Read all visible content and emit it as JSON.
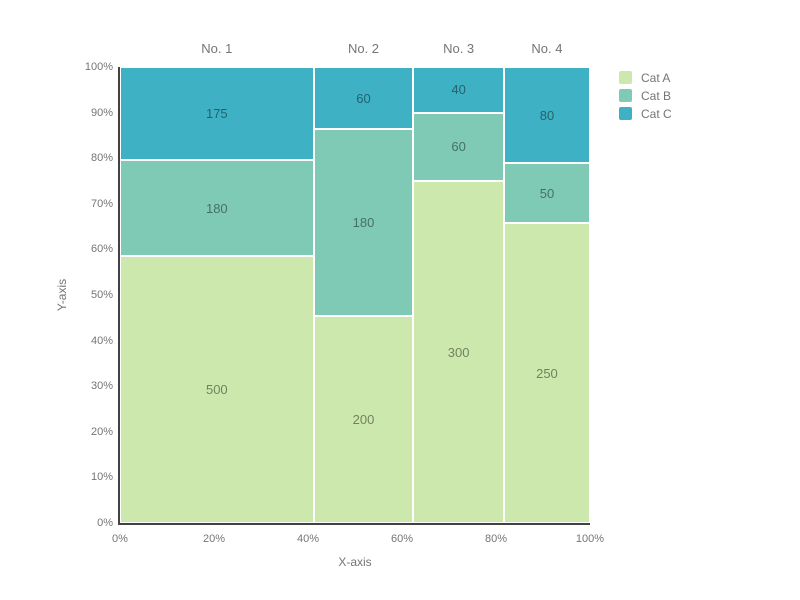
{
  "chart_data": {
    "type": "mosaic",
    "xlabel": "X-axis",
    "ylabel": "Y-axis",
    "categories": [
      "No. 1",
      "No. 2",
      "No. 3",
      "No. 4"
    ],
    "series": [
      {
        "name": "Cat A",
        "color": "#cde8ac",
        "values": [
          500,
          200,
          300,
          250
        ]
      },
      {
        "name": "Cat B",
        "color": "#7fcab4",
        "values": [
          180,
          180,
          60,
          50
        ]
      },
      {
        "name": "Cat C",
        "color": "#3fb1c5",
        "values": [
          175,
          60,
          40,
          80
        ]
      }
    ],
    "column_totals": [
      855,
      440,
      400,
      380
    ],
    "grand_total": 2075,
    "x_ticks": [
      "0%",
      "20%",
      "40%",
      "60%",
      "80%",
      "100%"
    ],
    "y_ticks": [
      "0%",
      "10%",
      "20%",
      "30%",
      "40%",
      "50%",
      "60%",
      "70%",
      "80%",
      "90%",
      "100%"
    ],
    "legend_position": "top-right",
    "grid": false,
    "style": {
      "axis_line_color": "#424242",
      "text_color": "#757575",
      "value_label_color": "rgba(0,0,0,0.45)",
      "separator_color": "#ffffff",
      "background": "#ffffff"
    }
  }
}
